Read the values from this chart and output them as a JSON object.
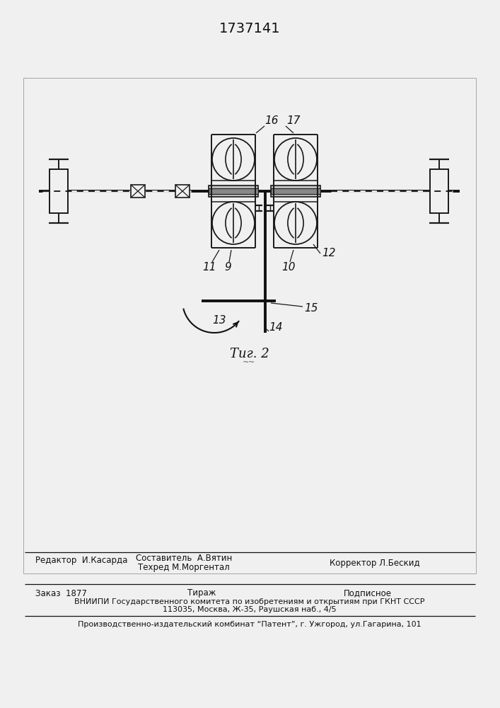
{
  "bg_color": "#f0f0f0",
  "title_text": "1737141",
  "fig_label": "Τиг. 2",
  "editor_label": "Редактор  И.Касарда",
  "composer_label": "Составитель  А.Вятин",
  "techred_label": "Техред М.Моргентал",
  "corrector_label": "Корректор Л.Бескид",
  "order_text": "Заказ  1877",
  "tirazh_text": "Тираж",
  "podpisnoe_text": "Подписное",
  "vnipi_text": "ВНИИПИ Государственного комитета по изобретениям и открытиям при ГКНТ СССР",
  "address_text": "113035, Москва, Ж-35, Раушская наб., 4/5",
  "proizv_text": "Производственно-издательский комбинат “Патент”, г. Ужгород, ул.Гагарина, 101"
}
